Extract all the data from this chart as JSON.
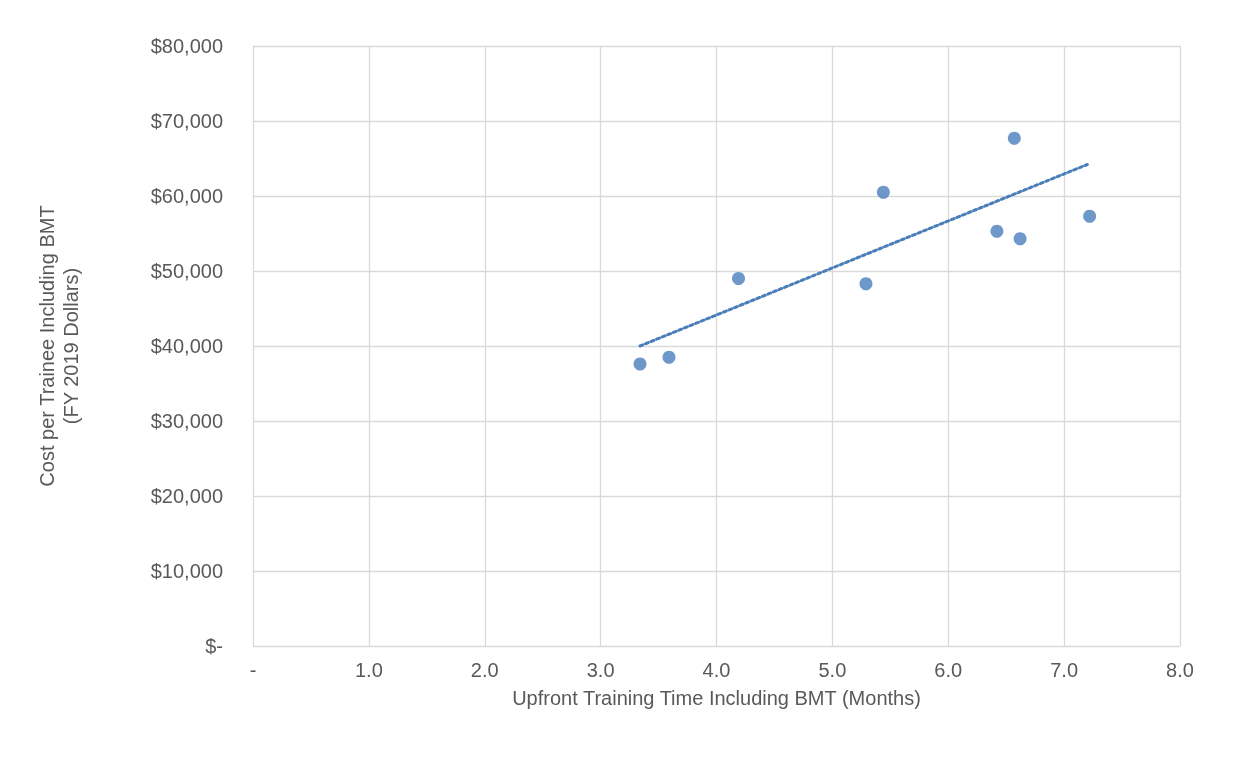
{
  "chart_data": {
    "type": "scatter",
    "xlabel": "Upfront Training Time Including BMT (Months)",
    "ylabel": "Cost per Trainee Including BMT\n(FY 2019 Dollars)",
    "x": [
      3.34,
      3.59,
      4.19,
      5.29,
      5.44,
      6.42,
      6.57,
      6.62,
      7.22
    ],
    "series": [
      {
        "type": "scatter",
        "color": "#4a7ebb",
        "marker": "circle",
        "values": [
          37600,
          38500,
          49000,
          48300,
          60500,
          55300,
          67700,
          54300,
          57300
        ]
      },
      {
        "type": "line",
        "color": "#4a7ebb",
        "marker": "none",
        "line_style": "dotted",
        "x": [
          3.34,
          7.2
        ],
        "values": [
          40000,
          64200
        ]
      }
    ],
    "xlim": [
      0,
      8
    ],
    "xticks": [
      {
        "value": 0,
        "label": "-"
      },
      {
        "value": 1,
        "label": "1.0"
      },
      {
        "value": 2,
        "label": "2.0"
      },
      {
        "value": 3,
        "label": "3.0"
      },
      {
        "value": 4,
        "label": "4.0"
      },
      {
        "value": 5,
        "label": "5.0"
      },
      {
        "value": 6,
        "label": "6.0"
      },
      {
        "value": 7,
        "label": "7.0"
      },
      {
        "value": 8,
        "label": "8.0"
      }
    ],
    "ylim": [
      0,
      80000
    ],
    "yticks": [
      {
        "value": 0,
        "label": "$-"
      },
      {
        "value": 10000,
        "label": "$10,000"
      },
      {
        "value": 20000,
        "label": "$20,000"
      },
      {
        "value": 30000,
        "label": "$30,000"
      },
      {
        "value": 40000,
        "label": "$40,000"
      },
      {
        "value": 50000,
        "label": "$50,000"
      },
      {
        "value": 60000,
        "label": "$60,000"
      },
      {
        "value": 70000,
        "label": "$70,000"
      },
      {
        "value": 80000,
        "label": "$80,000"
      }
    ],
    "grid": true
  }
}
